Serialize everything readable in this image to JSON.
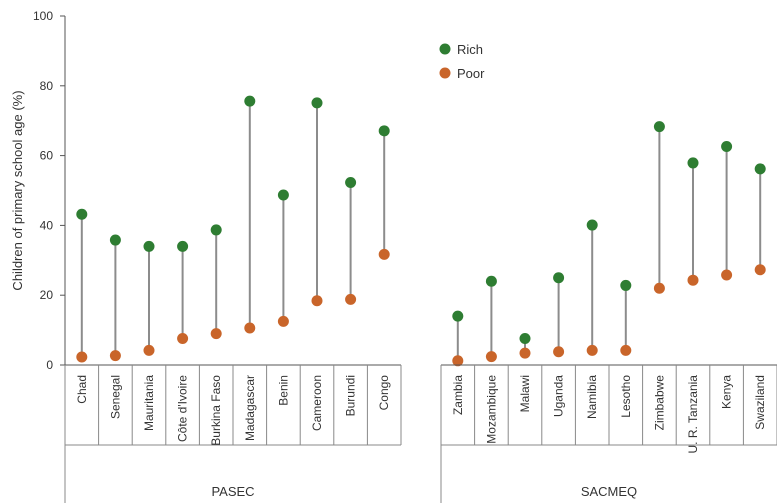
{
  "chart_data": {
    "type": "scatter",
    "ylabel": "Children of primary school age (%)",
    "ylim": [
      0,
      100
    ],
    "yticks": [
      0,
      20,
      40,
      60,
      80,
      100
    ],
    "legend": {
      "placement": "top-right"
    },
    "series": [
      {
        "name": "Rich",
        "color": "#2e7d32"
      },
      {
        "name": "Poor",
        "color": "#c9652a"
      }
    ],
    "connector_color": "#8c8c8c",
    "groups": [
      {
        "name": "PASEC",
        "categories": [
          "Chad",
          "Senegal",
          "Mauritania",
          "Côte d'Ivoire",
          "Burkina Faso",
          "Madagascar",
          "Benin",
          "Cameroon",
          "Burundi",
          "Congo"
        ],
        "rich": [
          43.2,
          35.8,
          34.0,
          34.0,
          38.7,
          75.6,
          48.7,
          75.1,
          52.3,
          67.1
        ],
        "poor": [
          2.3,
          2.7,
          4.2,
          7.6,
          9.0,
          10.6,
          12.5,
          18.4,
          18.8,
          31.7
        ]
      },
      {
        "name": "SACMEQ",
        "categories": [
          "Zambia",
          "Mozambique",
          "Malawi",
          "Uganda",
          "Namibia",
          "Lesotho",
          "Zimbabwe",
          "U. R. Tanzania",
          "Kenya",
          "Swaziland"
        ],
        "rich": [
          14.0,
          24.0,
          7.6,
          25.0,
          40.1,
          22.8,
          68.3,
          57.9,
          62.6,
          56.2
        ],
        "poor": [
          1.2,
          2.4,
          3.4,
          3.8,
          4.2,
          4.2,
          22.0,
          24.3,
          25.8,
          27.3
        ]
      }
    ]
  }
}
